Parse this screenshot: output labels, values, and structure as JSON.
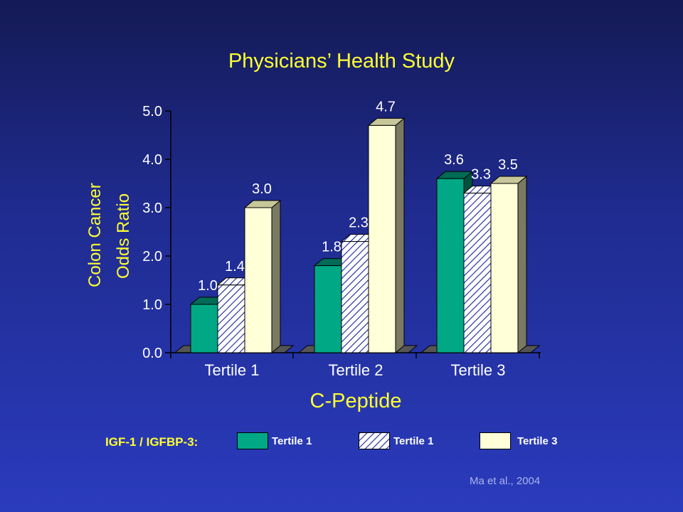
{
  "slide": {
    "title": "Physicians’ Health Study",
    "citation": "Ma et al., 2004"
  },
  "chart_data": {
    "type": "bar",
    "title": "Physicians’ Health Study",
    "ylabel_lines": [
      "Colon Cancer",
      "Odds Ratio"
    ],
    "xlabel": "C-Peptide",
    "categories": [
      "Tertile 1",
      "Tertile 2",
      "Tertile 3"
    ],
    "series": [
      {
        "name": "Tertile 1",
        "values": [
          1.0,
          1.8,
          3.6
        ],
        "color": "#00a885",
        "pattern": "solid"
      },
      {
        "name": "Tertile 1",
        "values": [
          1.4,
          2.3,
          3.3
        ],
        "color": "#ffffff",
        "pattern": "hatch"
      },
      {
        "name": "Tertile 3",
        "values": [
          3.0,
          4.7,
          3.5
        ],
        "color": "#ffffd8",
        "pattern": "solid"
      }
    ],
    "data_labels": [
      [
        "1.0",
        "1.8",
        "3.6"
      ],
      [
        "1.4",
        "2.3",
        "3.3"
      ],
      [
        "3.0",
        "4.7",
        "3.5"
      ]
    ],
    "yticks": [
      "0.0",
      "1.0",
      "2.0",
      "3.0",
      "4.0",
      "5.0"
    ],
    "ylim": [
      0,
      5
    ],
    "grid": false,
    "legend_title": "IGF-1 / IGFBP-3:",
    "legend_position": "bottom"
  },
  "colors": {
    "title": "#ffff33",
    "hatch_line": "#1a2398",
    "axis": "#000000",
    "tick_text": "#ffffff"
  }
}
